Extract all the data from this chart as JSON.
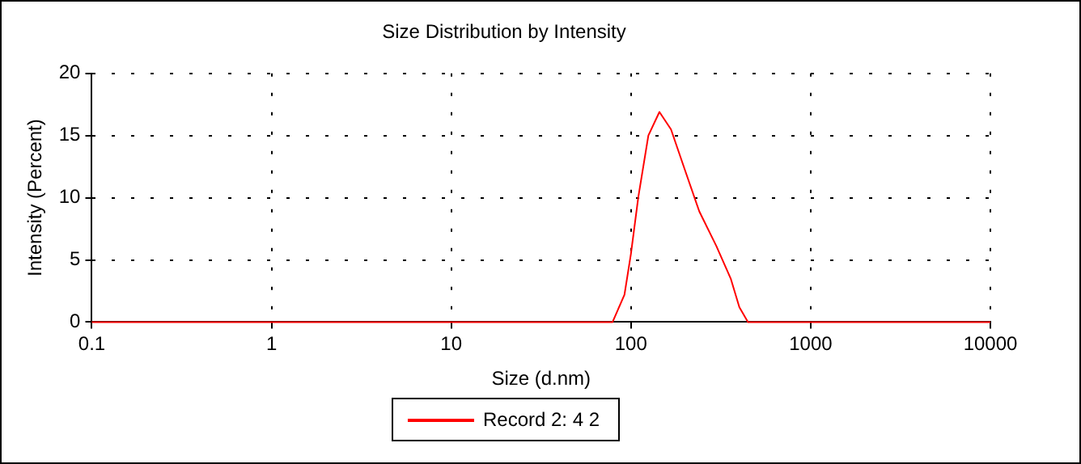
{
  "chart_data": {
    "type": "line",
    "title": "Size Distribution by Intensity",
    "xlabel": "Size (d.nm)",
    "ylabel": "Intensity (Percent)",
    "log": "x",
    "xlim": [
      0.1,
      10000
    ],
    "xticks": [
      0.1,
      1,
      10,
      100,
      1000,
      10000
    ],
    "ylim": [
      0,
      20
    ],
    "yticks": [
      0,
      5,
      10,
      15,
      20
    ],
    "grid": true,
    "legend": "bottom",
    "marker": "none",
    "line_style": "solid",
    "series": [
      {
        "name": "Record 2: 4 2",
        "color": "#ff0000",
        "x": [
          0.1,
          79,
          92,
          100,
          110,
          125,
          144,
          167,
          200,
          240,
          299,
          359,
          401,
          448,
          10000
        ],
        "values": [
          0,
          0,
          2.2,
          5.5,
          10.1,
          15,
          16.9,
          15.5,
          12.2,
          8.9,
          6.1,
          3.5,
          1.2,
          0,
          0
        ]
      }
    ]
  }
}
